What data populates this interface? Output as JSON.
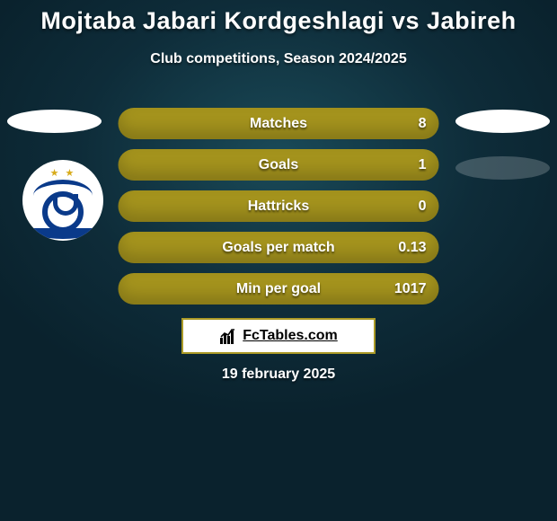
{
  "title": {
    "text": "Mojtaba Jabari Kordgeshlagi vs Jabireh",
    "fontsize": 27,
    "color": "#ffffff"
  },
  "subtitle": {
    "text": "Club competitions, Season 2024/2025",
    "fontsize": 16,
    "color": "#ffffff"
  },
  "ellipse_colors": {
    "white": "#ffffff",
    "faded": "rgba(255,255,255,0.2)"
  },
  "badge": {
    "brand_color": "#0a3a8a",
    "star_color": "#d8ab1a"
  },
  "bar_style": {
    "background_color": "#a4931d",
    "height": 35,
    "radius": 18,
    "label_fontsize": 16,
    "value_fontsize": 16,
    "text_color": "#ffffff"
  },
  "stats": [
    {
      "label": "Matches",
      "value": "8"
    },
    {
      "label": "Goals",
      "value": "1"
    },
    {
      "label": "Hattricks",
      "value": "0"
    },
    {
      "label": "Goals per match",
      "value": "0.13"
    },
    {
      "label": "Min per goal",
      "value": "1017"
    }
  ],
  "fctables": {
    "text": "FcTables.com",
    "border_color": "#ab9a27",
    "fontsize": 16
  },
  "date": {
    "text": "19 february 2025",
    "fontsize": 16
  }
}
